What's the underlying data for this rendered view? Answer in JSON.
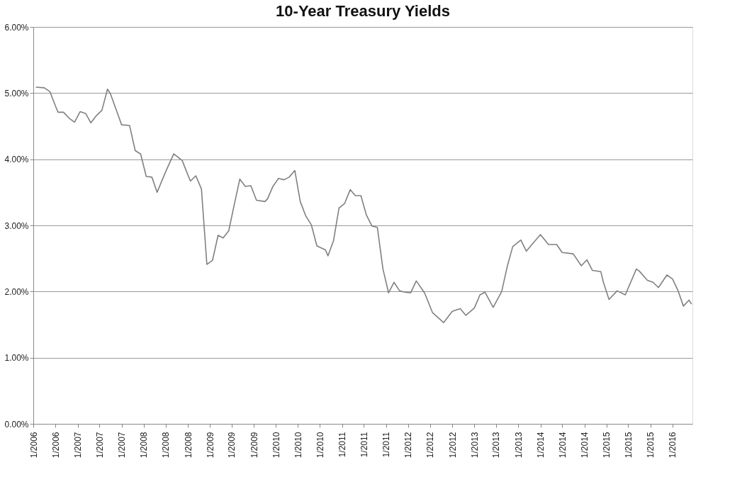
{
  "chart_data": {
    "type": "line",
    "title": "10-Year Treasury Yields",
    "x": [
      "2006-05-15",
      "2006-07-01",
      "2006-08-01",
      "2006-09-01",
      "2006-09-15",
      "2006-10-15",
      "2006-11-15",
      "2006-12-15",
      "2007-01-15",
      "2007-02-15",
      "2007-03-15",
      "2007-04-15",
      "2007-05-15",
      "2007-06-15",
      "2007-07-01",
      "2007-08-15",
      "2007-09-01",
      "2007-10-15",
      "2007-11-15",
      "2007-12-15",
      "2008-01-15",
      "2008-02-15",
      "2008-03-15",
      "2008-05-01",
      "2008-06-15",
      "2008-08-01",
      "2008-08-15",
      "2008-09-15",
      "2008-10-15",
      "2008-11-15",
      "2008-12-15",
      "2009-01-15",
      "2009-02-15",
      "2009-03-15",
      "2009-04-15",
      "2009-05-15",
      "2009-06-15",
      "2009-07-15",
      "2009-08-15",
      "2009-09-15",
      "2009-11-01",
      "2009-11-15",
      "2009-12-15",
      "2010-01-15",
      "2010-02-15",
      "2010-03-15",
      "2010-04-15",
      "2010-05-15",
      "2010-06-15",
      "2010-07-15",
      "2010-08-15",
      "2010-10-01",
      "2010-10-15",
      "2010-11-15",
      "2010-12-15",
      "2011-01-15",
      "2011-02-15",
      "2011-03-15",
      "2011-04-15",
      "2011-05-15",
      "2011-06-15",
      "2011-07-15",
      "2011-08-15",
      "2011-09-15",
      "2011-10-15",
      "2011-11-15",
      "2011-12-15",
      "2012-01-15",
      "2012-02-15",
      "2012-04-01",
      "2012-05-15",
      "2012-07-15",
      "2012-09-01",
      "2012-10-15",
      "2012-11-15",
      "2013-01-01",
      "2013-02-01",
      "2013-03-01",
      "2013-04-15",
      "2013-06-01",
      "2013-07-01",
      "2013-08-01",
      "2013-09-15",
      "2013-10-15",
      "2013-11-15",
      "2014-01-01",
      "2014-02-15",
      "2014-04-01",
      "2014-05-01",
      "2014-07-01",
      "2014-08-15",
      "2014-09-15",
      "2014-10-15",
      "2014-12-01",
      "2014-12-15",
      "2015-01-15",
      "2015-03-01",
      "2015-04-15",
      "2015-06-15",
      "2015-07-01",
      "2015-08-15",
      "2015-09-15",
      "2015-10-15",
      "2015-12-01",
      "2016-01-01",
      "2016-02-01",
      "2016-03-01",
      "2016-04-01",
      "2016-04-15"
    ],
    "series": [
      {
        "color": "#808080",
        "values": [
          5.09,
          5.08,
          5.02,
          4.8,
          4.71,
          4.71,
          4.62,
          4.56,
          4.72,
          4.69,
          4.55,
          4.66,
          4.74,
          5.06,
          4.99,
          4.65,
          4.52,
          4.51,
          4.13,
          4.08,
          3.74,
          3.73,
          3.5,
          3.81,
          4.08,
          3.98,
          3.88,
          3.67,
          3.75,
          3.55,
          2.41,
          2.47,
          2.85,
          2.81,
          2.92,
          3.31,
          3.7,
          3.59,
          3.6,
          3.38,
          3.36,
          3.4,
          3.59,
          3.71,
          3.69,
          3.73,
          3.83,
          3.36,
          3.14,
          3.01,
          2.69,
          2.63,
          2.54,
          2.77,
          3.26,
          3.33,
          3.54,
          3.45,
          3.45,
          3.16,
          2.99,
          2.97,
          2.34,
          1.98,
          2.14,
          2.01,
          1.99,
          1.98,
          2.16,
          1.98,
          1.68,
          1.53,
          1.7,
          1.74,
          1.64,
          1.75,
          1.95,
          1.99,
          1.76,
          2.0,
          2.37,
          2.68,
          2.78,
          2.61,
          2.71,
          2.86,
          2.71,
          2.71,
          2.59,
          2.57,
          2.39,
          2.48,
          2.32,
          2.3,
          2.14,
          1.88,
          2.01,
          1.95,
          2.34,
          2.31,
          2.17,
          2.14,
          2.06,
          2.25,
          2.19,
          2.01,
          1.78,
          1.87,
          1.81
        ]
      }
    ],
    "xlim": [
      "2006-05-01",
      "2016-04-20"
    ],
    "xticks": [
      {
        "value": "2006-05-01",
        "label": "1/2006"
      },
      {
        "value": "2006-09-01",
        "label": "1/2006"
      },
      {
        "value": "2007-01-01",
        "label": "1/2007"
      },
      {
        "value": "2007-05-01",
        "label": "1/2007"
      },
      {
        "value": "2007-09-01",
        "label": "1/2007"
      },
      {
        "value": "2008-01-01",
        "label": "1/2008"
      },
      {
        "value": "2008-05-01",
        "label": "1/2008"
      },
      {
        "value": "2008-09-01",
        "label": "1/2008"
      },
      {
        "value": "2009-01-01",
        "label": "1/2009"
      },
      {
        "value": "2009-05-01",
        "label": "1/2009"
      },
      {
        "value": "2009-09-01",
        "label": "1/2009"
      },
      {
        "value": "2010-01-01",
        "label": "1/2010"
      },
      {
        "value": "2010-05-01",
        "label": "1/2010"
      },
      {
        "value": "2010-09-01",
        "label": "1/2010"
      },
      {
        "value": "2011-01-01",
        "label": "1/2011"
      },
      {
        "value": "2011-05-01",
        "label": "1/2011"
      },
      {
        "value": "2011-09-01",
        "label": "1/2011"
      },
      {
        "value": "2012-01-01",
        "label": "1/2012"
      },
      {
        "value": "2012-05-01",
        "label": "1/2012"
      },
      {
        "value": "2012-09-01",
        "label": "1/2012"
      },
      {
        "value": "2013-01-01",
        "label": "1/2013"
      },
      {
        "value": "2013-05-01",
        "label": "1/2013"
      },
      {
        "value": "2013-09-01",
        "label": "1/2013"
      },
      {
        "value": "2014-01-01",
        "label": "1/2014"
      },
      {
        "value": "2014-05-01",
        "label": "1/2014"
      },
      {
        "value": "2014-09-01",
        "label": "1/2014"
      },
      {
        "value": "2015-01-01",
        "label": "1/2015"
      },
      {
        "value": "2015-05-01",
        "label": "1/2015"
      },
      {
        "value": "2015-09-01",
        "label": "1/2015"
      },
      {
        "value": "2016-01-01",
        "label": "1/2016"
      }
    ],
    "ylim": [
      0,
      6
    ],
    "yticks": [
      {
        "value": 0,
        "label": "0.00%"
      },
      {
        "value": 1,
        "label": "1.00%"
      },
      {
        "value": 2,
        "label": "2.00%"
      },
      {
        "value": 3,
        "label": "3.00%"
      },
      {
        "value": 4,
        "label": "4.00%"
      },
      {
        "value": 5,
        "label": "5.00%"
      },
      {
        "value": 6,
        "label": "6.00%"
      }
    ],
    "grid": "y",
    "legend": false,
    "marker": "none",
    "line_style": "solid"
  }
}
